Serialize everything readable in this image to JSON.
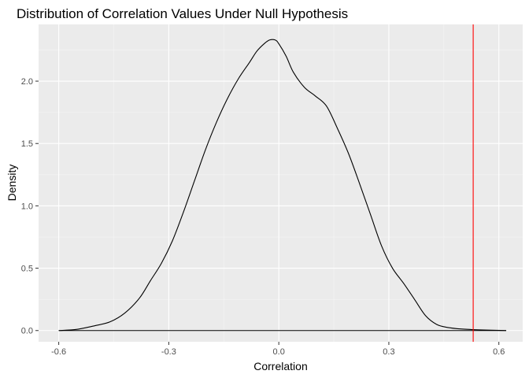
{
  "chart_data": {
    "type": "line",
    "title": "Distribution of Correlation Values Under Null Hypothesis",
    "xlabel": "Correlation",
    "ylabel": "Density",
    "xlim": [
      -0.655,
      0.665
    ],
    "ylim": [
      -0.09,
      2.455
    ],
    "x_ticks": [
      -0.6,
      -0.3,
      0.0,
      0.3,
      0.6
    ],
    "x_tick_labels": [
      "-0.6",
      "-0.3",
      "0.0",
      "0.3",
      "0.6"
    ],
    "y_ticks": [
      0.0,
      0.5,
      1.0,
      1.5,
      2.0
    ],
    "y_tick_labels": [
      "0.0",
      "0.5",
      "1.0",
      "1.5",
      "2.0"
    ],
    "x_minor_ticks": [
      -0.45,
      -0.15,
      0.15,
      0.45
    ],
    "y_minor_ticks": [
      0.25,
      0.75,
      1.25,
      1.75,
      2.25
    ],
    "grid": true,
    "series": [
      {
        "color": "#000000",
        "x": [
          -0.6,
          -0.55,
          -0.5,
          -0.46,
          -0.42,
          -0.38,
          -0.35,
          -0.32,
          -0.29,
          -0.26,
          -0.23,
          -0.2,
          -0.17,
          -0.14,
          -0.11,
          -0.08,
          -0.06,
          -0.04,
          -0.025,
          -0.01,
          0.0,
          0.02,
          0.04,
          0.07,
          0.1,
          0.13,
          0.16,
          0.19,
          0.22,
          0.25,
          0.28,
          0.31,
          0.34,
          0.37,
          0.4,
          0.43,
          0.46,
          0.5,
          0.55,
          0.62
        ],
        "y": [
          0.0,
          0.01,
          0.04,
          0.07,
          0.14,
          0.26,
          0.4,
          0.54,
          0.72,
          0.95,
          1.2,
          1.45,
          1.67,
          1.86,
          2.02,
          2.15,
          2.24,
          2.3,
          2.33,
          2.33,
          2.3,
          2.2,
          2.07,
          1.95,
          1.88,
          1.8,
          1.62,
          1.42,
          1.18,
          0.93,
          0.68,
          0.5,
          0.38,
          0.25,
          0.12,
          0.05,
          0.025,
          0.012,
          0.005,
          0.0
        ]
      }
    ],
    "baseline": {
      "y": 0.0,
      "x": [
        -0.6,
        0.62
      ],
      "color": "#000000"
    },
    "vline": {
      "x": 0.53,
      "color": "#ff0000"
    }
  }
}
